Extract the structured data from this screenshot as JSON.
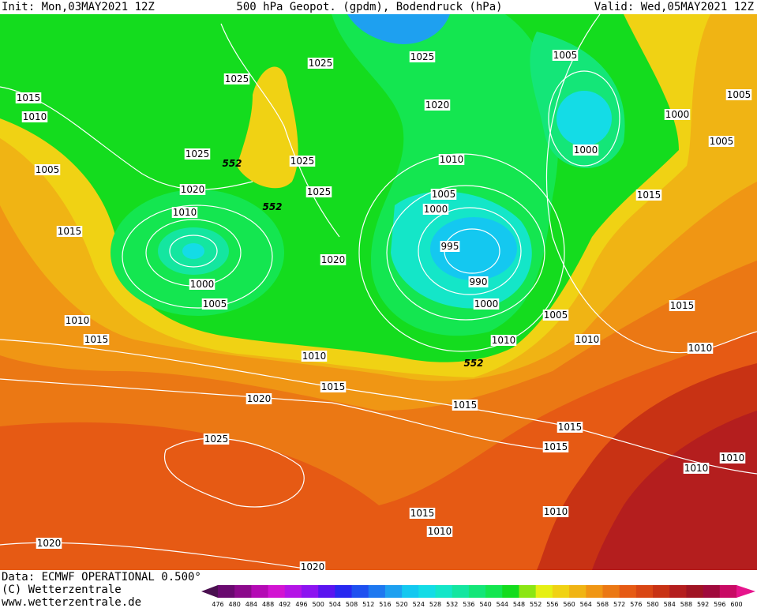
{
  "header": {
    "init": "Init: Mon,03MAY2021 12Z",
    "title": "500 hPa Geopot. (gpdm), Bodendruck (hPa)",
    "valid": "Valid: Wed,05MAY2021 12Z"
  },
  "map": {
    "isobar_labels": [
      "1015",
      "1010",
      "1005",
      "1015",
      "1010",
      "1015",
      "1025",
      "1025",
      "1020",
      "1010",
      "1000",
      "1005",
      "1025",
      "1025",
      "1025",
      "1020",
      "1010",
      "1015",
      "1020",
      "1025",
      "1020",
      "1020",
      "1025",
      "1020",
      "1010",
      "1005",
      "1000",
      "995",
      "990",
      "1000",
      "1010",
      "1015",
      "1005",
      "1000",
      "1005",
      "1005",
      "1000",
      "1015",
      "1015",
      "1010",
      "1005",
      "1010",
      "1015",
      "1015",
      "1010",
      "1010",
      "1015",
      "1010",
      "1010"
    ],
    "contour_labels": [
      "552",
      "552",
      "552"
    ]
  },
  "footer": {
    "data": "Data: ECMWF OPERATIONAL 0.500°",
    "copyright": "(C) Wetterzentrale",
    "url": "www.wetterzentrale.de"
  },
  "colorbar": {
    "ticks": [
      476,
      480,
      484,
      488,
      492,
      496,
      500,
      504,
      508,
      512,
      516,
      520,
      524,
      528,
      532,
      536,
      540,
      544,
      548,
      552,
      556,
      560,
      564,
      568,
      572,
      576,
      580,
      584,
      588,
      592,
      596,
      600
    ],
    "colors": [
      "#4a1050",
      "#6a0a70",
      "#8c0a8c",
      "#b40ab4",
      "#d214d2",
      "#b414e6",
      "#8c14f0",
      "#5a14f0",
      "#2828f0",
      "#1e50f0",
      "#1e78f0",
      "#1ea0f0",
      "#14c8f0",
      "#14dce6",
      "#14e6c8",
      "#14e6a0",
      "#14e678",
      "#14e650",
      "#14dc1e",
      "#8ce614",
      "#e6f014",
      "#f0d214",
      "#f0b414",
      "#f09614",
      "#eb7814",
      "#e65a14",
      "#d94614",
      "#c83214",
      "#b41e1e",
      "#a01423",
      "#a00a3c",
      "#c80a64",
      "#e6148c"
    ]
  }
}
